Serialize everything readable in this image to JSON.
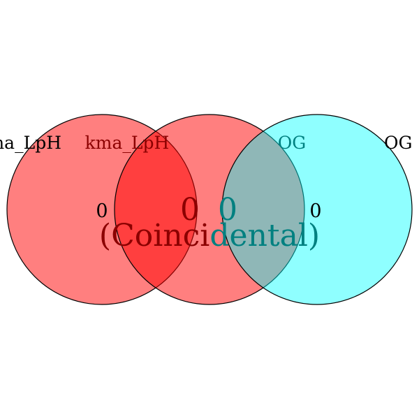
{
  "colors": {
    "set_red": "#ff0000",
    "set_cyan": "#00ffff",
    "dark_red_text": "#8b0000",
    "teal_text": "#008080",
    "outline": "#000000",
    "background": "#ffffff"
  },
  "venn": {
    "sets": [
      {
        "label": "kma_LpH",
        "count": "0"
      },
      {
        "label": "kma_LpH",
        "count": "0"
      },
      {
        "label": "OG",
        "count": "0"
      },
      {
        "label": "OG",
        "count": "0"
      }
    ],
    "coincidental_note": "(Coincidental)"
  }
}
